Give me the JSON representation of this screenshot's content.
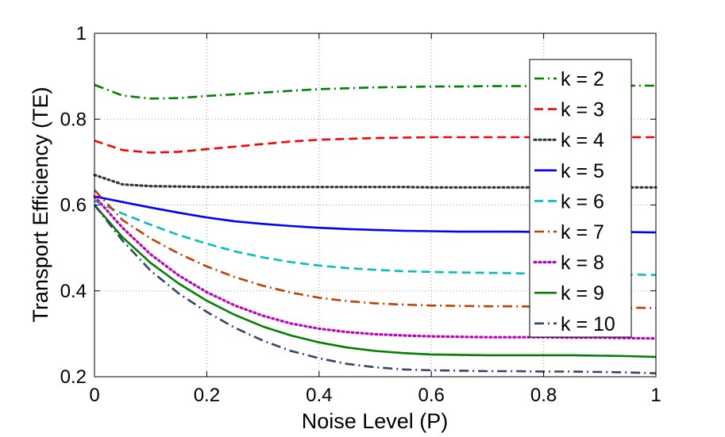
{
  "chart_data": {
    "type": "line",
    "title": "",
    "xlabel": "Noise Level (P)",
    "ylabel": "Transport Efficiency (TE)",
    "xlim": [
      0,
      1
    ],
    "ylim": [
      0.2,
      1
    ],
    "xticks": [
      0,
      0.2,
      0.4,
      0.6,
      0.8,
      1
    ],
    "yticks": [
      0.2,
      0.4,
      0.6,
      0.8,
      1
    ],
    "xtick_labels": [
      "0",
      "0.2",
      "0.4",
      "0.6",
      "0.8",
      "1"
    ],
    "ytick_labels": [
      "0.2",
      "0.4",
      "0.6",
      "0.8",
      "1"
    ],
    "grid": true,
    "legend_position": "top-right",
    "x": [
      0,
      0.05,
      0.1,
      0.15,
      0.2,
      0.25,
      0.3,
      0.35,
      0.4,
      0.45,
      0.5,
      0.55,
      0.6,
      0.65,
      0.7,
      0.75,
      0.8,
      0.85,
      0.9,
      0.95,
      1.0
    ],
    "series": [
      {
        "name": "k = 2",
        "color": "#008000",
        "style": "dashdot",
        "values": [
          0.88,
          0.855,
          0.848,
          0.849,
          0.854,
          0.858,
          0.862,
          0.866,
          0.87,
          0.872,
          0.874,
          0.875,
          0.876,
          0.876,
          0.877,
          0.877,
          0.877,
          0.877,
          0.878,
          0.878,
          0.878
        ]
      },
      {
        "name": "k = 3",
        "color": "#ff0000",
        "style": "dashed",
        "values": [
          0.75,
          0.728,
          0.722,
          0.724,
          0.73,
          0.736,
          0.742,
          0.748,
          0.752,
          0.754,
          0.756,
          0.757,
          0.758,
          0.758,
          0.758,
          0.758,
          0.758,
          0.758,
          0.758,
          0.758,
          0.758
        ]
      },
      {
        "name": "k = 4",
        "color": "#333333",
        "style": "dotted",
        "values": [
          0.67,
          0.648,
          0.644,
          0.643,
          0.642,
          0.642,
          0.642,
          0.642,
          0.642,
          0.642,
          0.642,
          0.642,
          0.641,
          0.641,
          0.641,
          0.641,
          0.641,
          0.641,
          0.641,
          0.641,
          0.641
        ]
      },
      {
        "name": "k = 5",
        "color": "#0000ff",
        "style": "solid",
        "values": [
          0.62,
          0.607,
          0.594,
          0.582,
          0.571,
          0.562,
          0.556,
          0.551,
          0.547,
          0.544,
          0.542,
          0.54,
          0.539,
          0.538,
          0.538,
          0.538,
          0.537,
          0.537,
          0.537,
          0.537,
          0.536
        ]
      },
      {
        "name": "k = 6",
        "color": "#00bfbf",
        "style": "dashed",
        "values": [
          0.61,
          0.58,
          0.554,
          0.53,
          0.51,
          0.492,
          0.478,
          0.467,
          0.459,
          0.453,
          0.449,
          0.446,
          0.444,
          0.443,
          0.442,
          0.441,
          0.44,
          0.44,
          0.439,
          0.438,
          0.437
        ]
      },
      {
        "name": "k = 7",
        "color": "#bf4000",
        "style": "dashdot",
        "values": [
          0.635,
          0.565,
          0.522,
          0.487,
          0.457,
          0.432,
          0.412,
          0.396,
          0.384,
          0.376,
          0.371,
          0.368,
          0.366,
          0.365,
          0.364,
          0.364,
          0.363,
          0.363,
          0.362,
          0.361,
          0.36
        ]
      },
      {
        "name": "k = 8",
        "color": "#bf00bf",
        "style": "dotted",
        "values": [
          0.62,
          0.547,
          0.485,
          0.436,
          0.397,
          0.366,
          0.342,
          0.324,
          0.312,
          0.304,
          0.299,
          0.296,
          0.294,
          0.293,
          0.292,
          0.292,
          0.292,
          0.291,
          0.291,
          0.29,
          0.289
        ]
      },
      {
        "name": "k = 9",
        "color": "#008000",
        "style": "solid",
        "values": [
          0.6,
          0.525,
          0.465,
          0.417,
          0.377,
          0.344,
          0.317,
          0.296,
          0.28,
          0.268,
          0.26,
          0.255,
          0.252,
          0.251,
          0.25,
          0.25,
          0.25,
          0.25,
          0.249,
          0.248,
          0.246
        ]
      },
      {
        "name": "k = 10",
        "color": "#33446a",
        "style": "dashdot",
        "values": [
          0.6,
          0.517,
          0.447,
          0.394,
          0.351,
          0.314,
          0.284,
          0.26,
          0.243,
          0.23,
          0.222,
          0.217,
          0.215,
          0.214,
          0.213,
          0.213,
          0.212,
          0.212,
          0.211,
          0.21,
          0.208
        ]
      }
    ]
  }
}
